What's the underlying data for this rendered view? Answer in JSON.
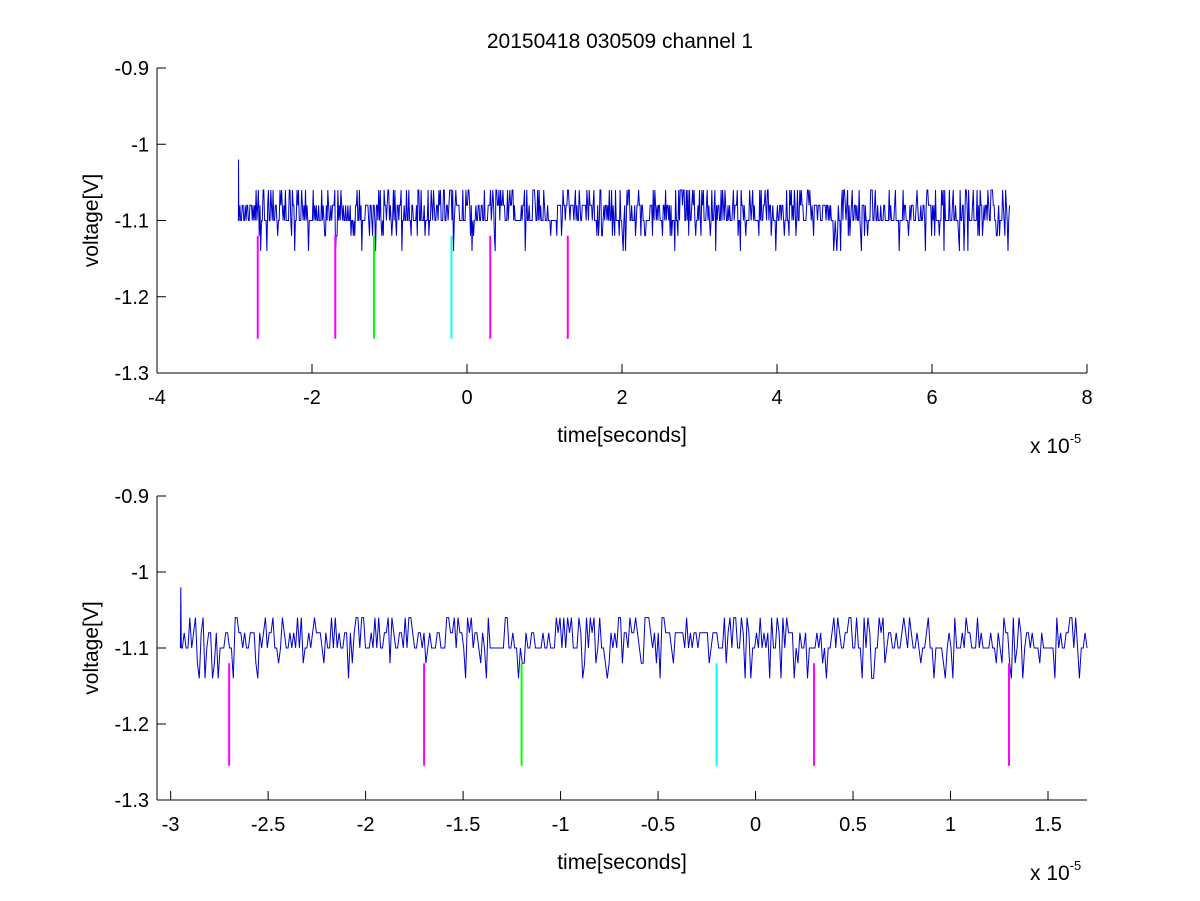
{
  "figure": {
    "title": "20150418 030509 channel 1"
  },
  "chart_data": [
    {
      "type": "line",
      "title": "20150418 030509 channel 1",
      "xlabel": "time[seconds]",
      "ylabel": "voltage[V]",
      "x_multiplier_label": "x 10",
      "x_multiplier_exponent": "-5",
      "xlim": [
        -4,
        8
      ],
      "ylim": [
        -1.3,
        -0.9
      ],
      "xticks": [
        "-4",
        "-2",
        "0",
        "2",
        "4",
        "6",
        "8"
      ],
      "xtick_values": [
        -4,
        -2,
        0,
        2,
        4,
        6,
        8
      ],
      "yticks": [
        "-0.9",
        "-1",
        "-1.1",
        "-1.2",
        "-1.3"
      ],
      "ytick_values": [
        -0.9,
        -1.0,
        -1.1,
        -1.2,
        -1.3
      ],
      "grid": false,
      "series": [
        {
          "color": "#0000cc",
          "x_range": [
            -2.95,
            7.0
          ],
          "baseline": -1.1,
          "levels": [
            -1.14,
            -1.12,
            -1.1,
            -1.08,
            -1.06
          ],
          "start_spike": -1.02
        }
      ],
      "markers": [
        {
          "x": -2.7,
          "y_top": -1.12,
          "y_bottom": -1.255,
          "color": "#ff00ff"
        },
        {
          "x": -1.7,
          "y_top": -1.12,
          "y_bottom": -1.255,
          "color": "#ff00ff"
        },
        {
          "x": -1.2,
          "y_top": -1.12,
          "y_bottom": -1.255,
          "color": "#00ff00"
        },
        {
          "x": -0.2,
          "y_top": -1.12,
          "y_bottom": -1.255,
          "color": "#00ffff"
        },
        {
          "x": 0.3,
          "y_top": -1.12,
          "y_bottom": -1.255,
          "color": "#ff00ff"
        },
        {
          "x": 1.3,
          "y_top": -1.12,
          "y_bottom": -1.255,
          "color": "#ff00ff"
        }
      ]
    },
    {
      "type": "line",
      "title": "",
      "xlabel": "time[seconds]",
      "ylabel": "voltage[V]",
      "x_multiplier_label": "x 10",
      "x_multiplier_exponent": "-5",
      "xlim": [
        -3.07,
        1.7
      ],
      "ylim": [
        -1.3,
        -0.9
      ],
      "xticks": [
        "-3",
        "-2.5",
        "-2",
        "-1.5",
        "-1",
        "-0.5",
        "0",
        "0.5",
        "1",
        "1.5"
      ],
      "xtick_values": [
        -3,
        -2.5,
        -2,
        -1.5,
        -1,
        -0.5,
        0,
        0.5,
        1,
        1.5
      ],
      "yticks": [
        "-0.9",
        "-1",
        "-1.1",
        "-1.2",
        "-1.3"
      ],
      "ytick_values": [
        -0.9,
        -1.0,
        -1.1,
        -1.2,
        -1.3
      ],
      "grid": false,
      "series": [
        {
          "color": "#0000cc",
          "x_range": [
            -2.95,
            1.7
          ],
          "baseline": -1.1,
          "levels": [
            -1.14,
            -1.12,
            -1.1,
            -1.08,
            -1.06
          ],
          "start_spike": -1.02
        }
      ],
      "markers": [
        {
          "x": -2.7,
          "y_top": -1.12,
          "y_bottom": -1.255,
          "color": "#ff00ff"
        },
        {
          "x": -1.7,
          "y_top": -1.12,
          "y_bottom": -1.255,
          "color": "#ff00ff"
        },
        {
          "x": -1.2,
          "y_top": -1.12,
          "y_bottom": -1.255,
          "color": "#00ff00"
        },
        {
          "x": -0.2,
          "y_top": -1.12,
          "y_bottom": -1.255,
          "color": "#00ffff"
        },
        {
          "x": 0.3,
          "y_top": -1.12,
          "y_bottom": -1.255,
          "color": "#ff00ff"
        },
        {
          "x": 1.3,
          "y_top": -1.12,
          "y_bottom": -1.255,
          "color": "#ff00ff"
        }
      ]
    }
  ]
}
